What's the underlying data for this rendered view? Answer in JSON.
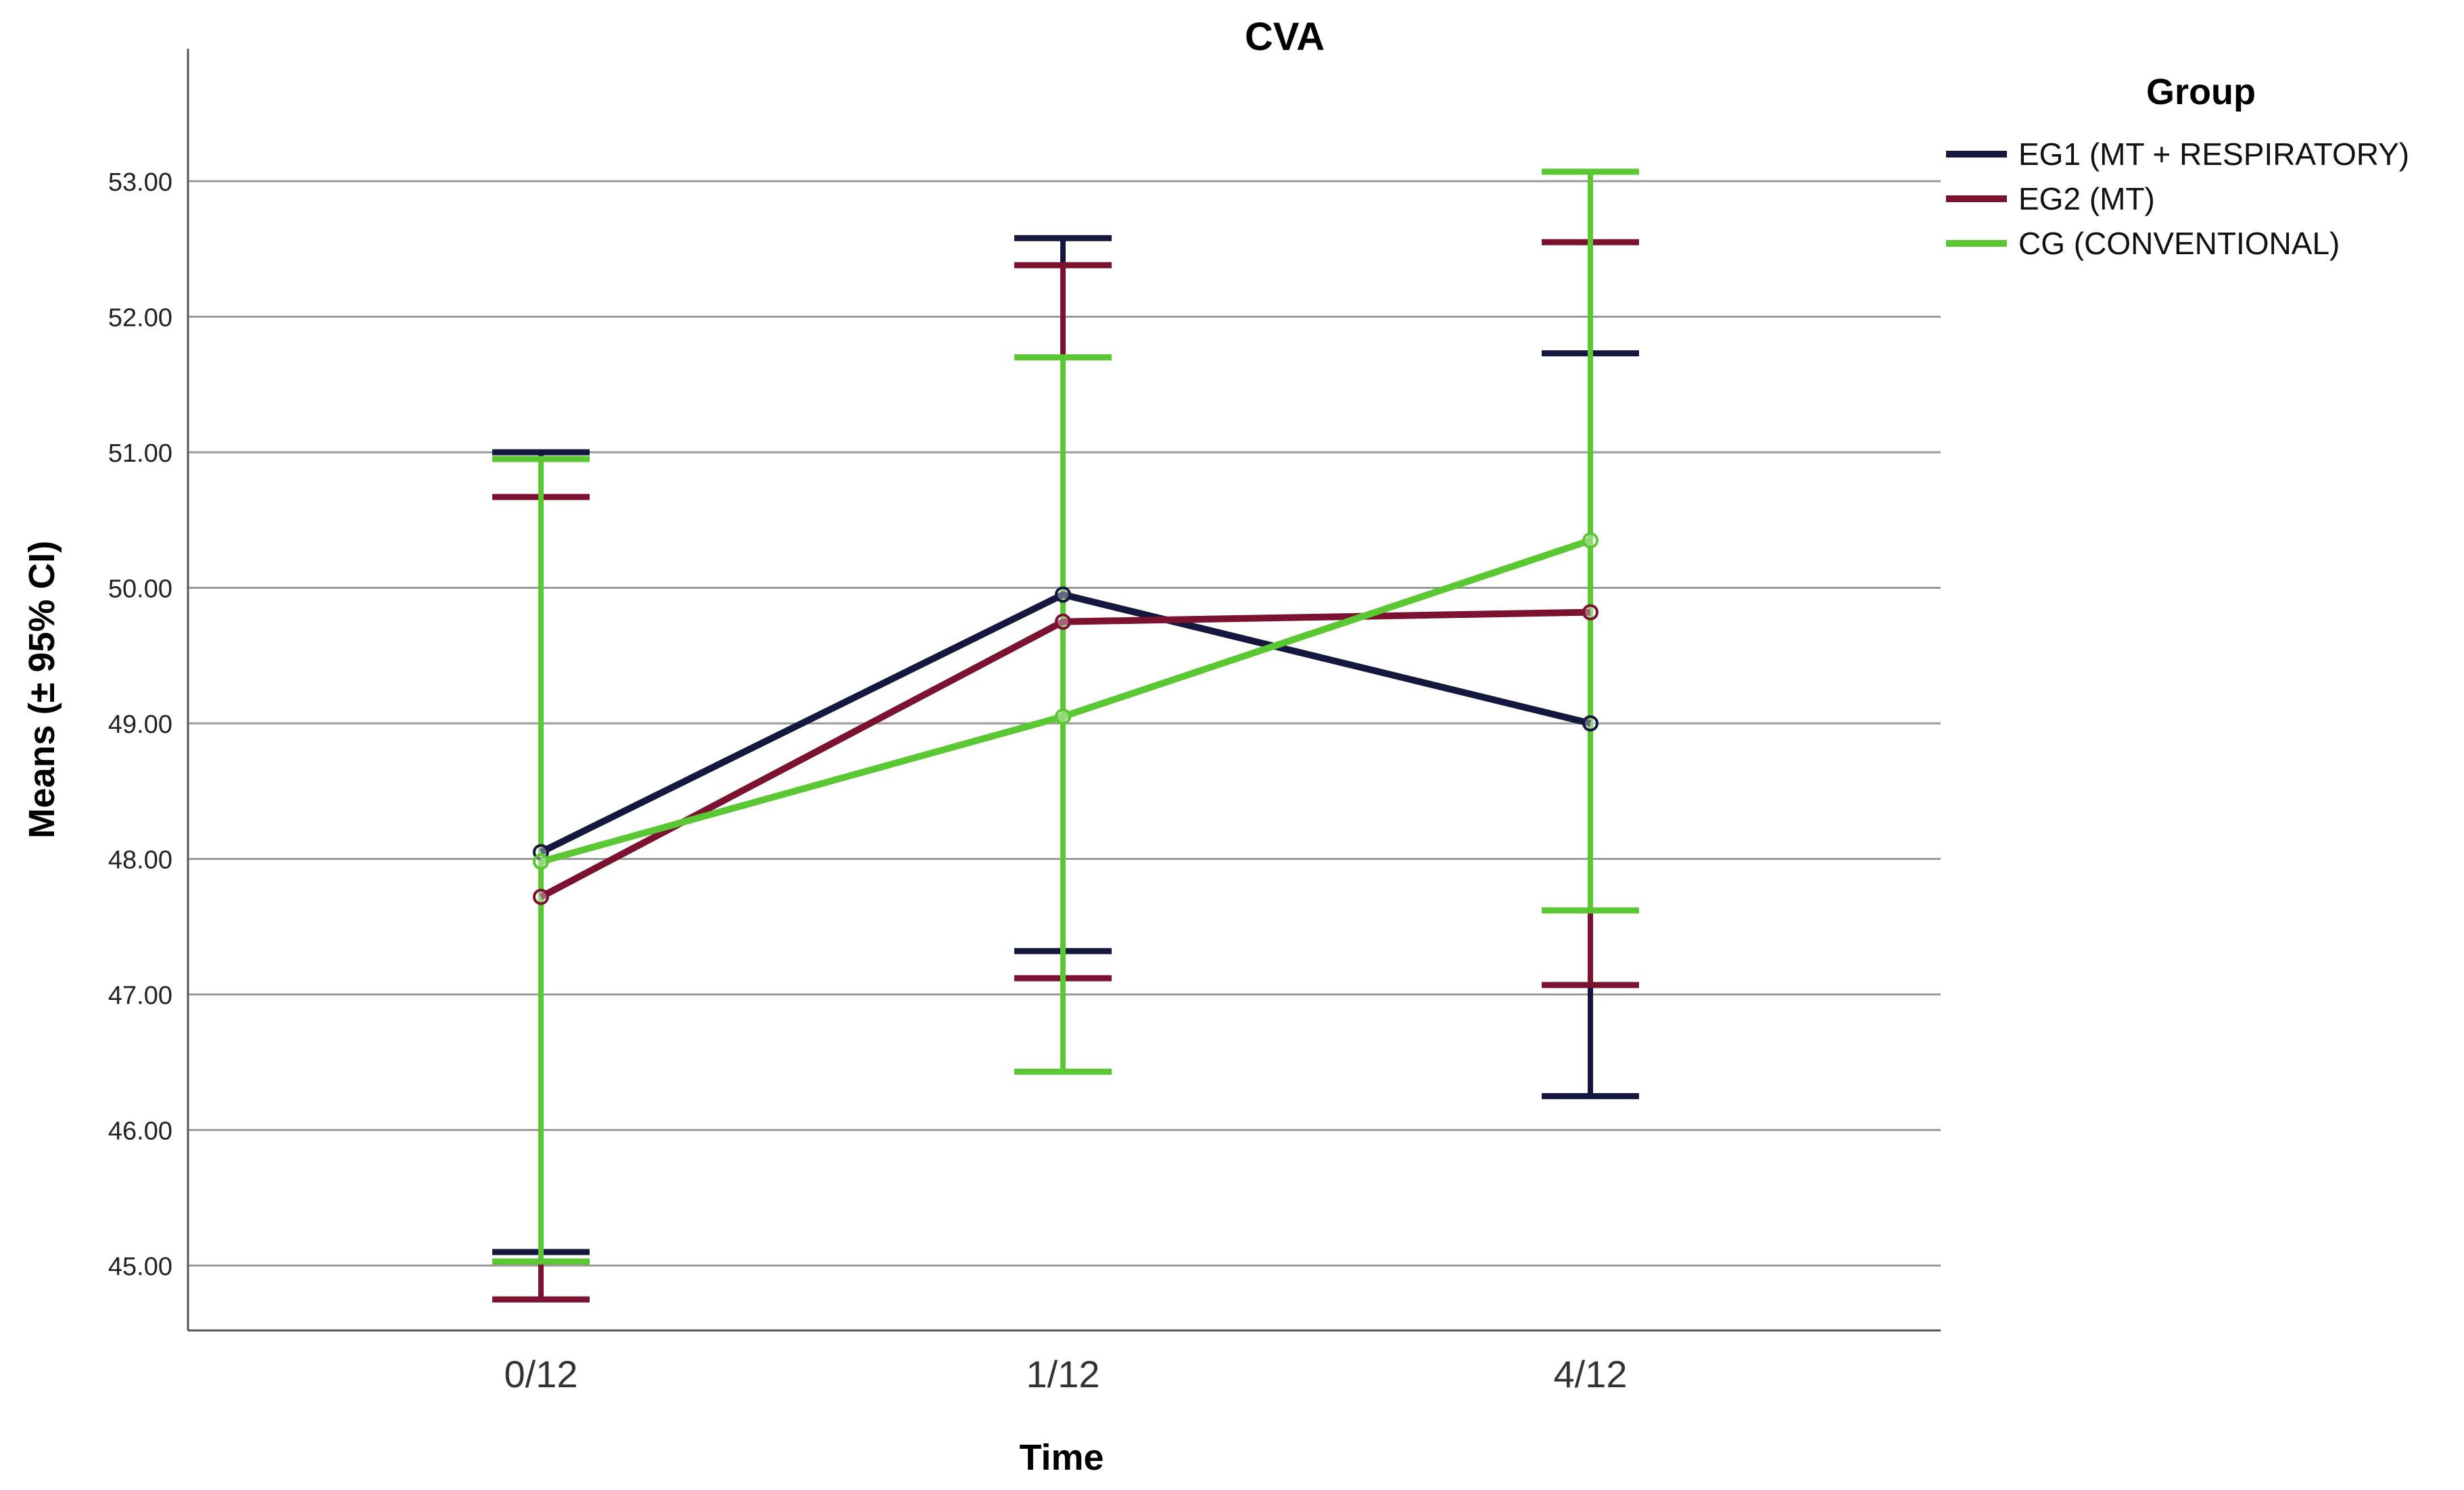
{
  "chart_data": {
    "type": "line",
    "title": "CVA",
    "xlabel": "Time",
    "ylabel": "Means (± 95% CI)",
    "categories": [
      "0/12",
      "1/12",
      "4/12"
    ],
    "ylim": [
      44.5,
      54.0
    ],
    "yticks": [
      "45.00",
      "46.00",
      "47.00",
      "48.00",
      "49.00",
      "50.00",
      "51.00",
      "52.00",
      "53.00"
    ],
    "grid": "horizontal",
    "legend": {
      "title": "Group",
      "placement": "top-right"
    },
    "series": [
      {
        "name": "EG1 (MT + RESPIRATORY)",
        "color": "#14183f",
        "values": [
          48.05,
          49.95,
          49.0
        ],
        "ci_low": [
          45.1,
          47.32,
          46.25
        ],
        "ci_high": [
          51.0,
          52.58,
          51.73
        ]
      },
      {
        "name": "EG2 (MT)",
        "color": "#7a1230",
        "values": [
          47.72,
          49.75,
          49.82
        ],
        "ci_low": [
          44.75,
          47.12,
          47.07
        ],
        "ci_high": [
          50.67,
          52.38,
          52.55
        ]
      },
      {
        "name": "CG (CONVENTIONAL)",
        "color": "#5ac832",
        "values": [
          47.98,
          49.05,
          50.35
        ],
        "ci_low": [
          45.03,
          46.43,
          47.62
        ],
        "ci_high": [
          50.95,
          51.7,
          53.07
        ]
      }
    ]
  }
}
